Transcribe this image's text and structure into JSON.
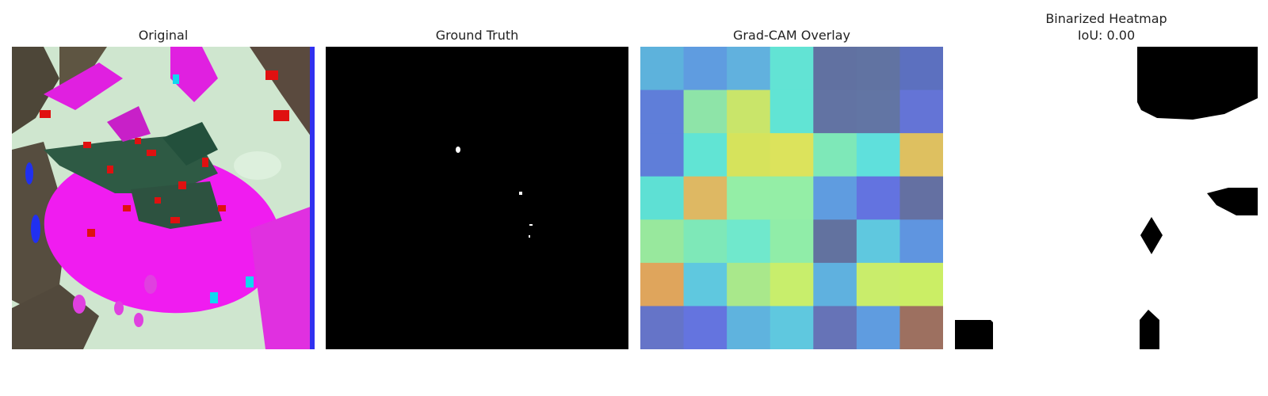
{
  "panels": [
    {
      "title": "Original"
    },
    {
      "title": "Ground Truth"
    },
    {
      "title": "Grad-CAM Overlay"
    },
    {
      "title": "Binarized Heatmap",
      "subtitle": "IoU: 0.00"
    }
  ],
  "gradcam_grid": [
    [
      "#5db2dc",
      "#5f9ce0",
      "#61b1de",
      "#62e3d4",
      "#6171a1",
      "#6173a2",
      "#5c70bf"
    ],
    [
      "#5f7ed9",
      "#8ee4a8",
      "#c9e56a",
      "#61e4d4",
      "#6273a3",
      "#6275a4",
      "#6474d6"
    ],
    [
      "#5f7ed9",
      "#61e4d4",
      "#d6e35c",
      "#dce35c",
      "#7ee8b8",
      "#5fe0dc",
      "#dec060"
    ],
    [
      "#5ee0d4",
      "#deb863",
      "#94eea6",
      "#94eea6",
      "#5f9ce0",
      "#6373e0",
      "#6470a2"
    ],
    [
      "#98e89d",
      "#7ee8b8",
      "#70e8cc",
      "#90eda8",
      "#62729f",
      "#5fc8df",
      "#5f95e0"
    ],
    [
      "#dfa55c",
      "#5fc8df",
      "#a9e88b",
      "#c8ee6c",
      "#5fb1df",
      "#c9ed6b",
      "#cbee65"
    ],
    [
      "#6574c8",
      "#6474df",
      "#5fb3de",
      "#5fc8df",
      "#6673b7",
      "#5f9ce0",
      "#9d7060"
    ]
  ],
  "colors": {
    "mask_background": "#000000",
    "mask_foreground": "#ffffff"
  }
}
